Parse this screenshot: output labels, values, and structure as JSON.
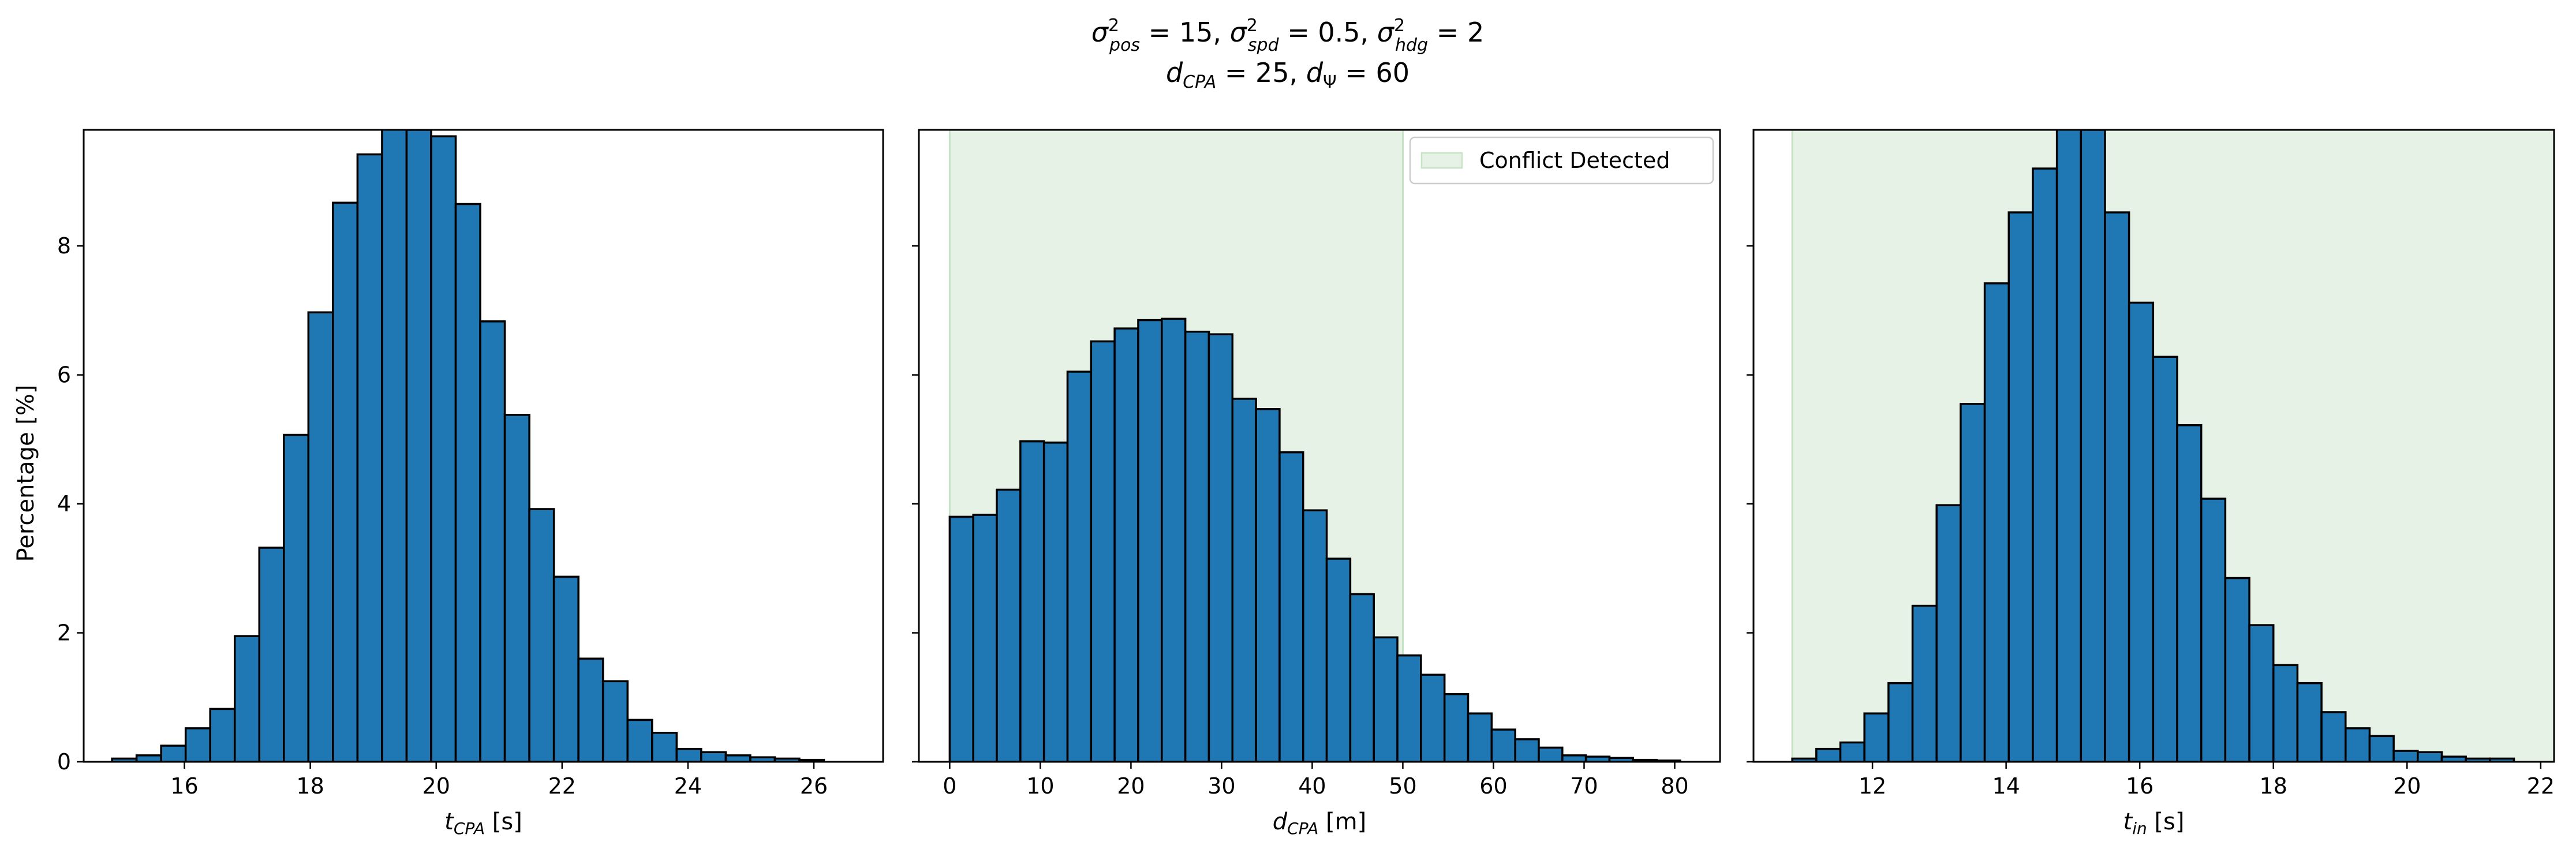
{
  "suptitle": {
    "line1": {
      "sigma": "σ",
      "sup": "2",
      "sub_pos": "pos",
      "val_pos": " = 15, ",
      "sub_spd": "spd",
      "val_spd": " = 0.5, ",
      "sub_hdg": "hdg",
      "val_hdg": " = 2"
    },
    "line2": {
      "d": "d",
      "sub_cpa": "CPA",
      "val_cpa": " = 25, ",
      "sub_psi": "Ψ",
      "val_psi": " = 60"
    }
  },
  "colors": {
    "bar_fill": "#1f77b4",
    "bar_edge": "#000000",
    "shade": "#e5f2e5",
    "shade_edge": "#c6e3c6"
  },
  "ylabel": "Percentage [%]",
  "legend_label": "Conflict Detected",
  "chart_data": [
    {
      "type": "bar",
      "name": "t_CPA",
      "xlabel": {
        "main": "t",
        "sub": "CPA",
        "unit": " [s]"
      },
      "xlim": [
        14.4,
        27.1
      ],
      "ylim": [
        0,
        9.8
      ],
      "xticks": [
        16,
        18,
        20,
        22,
        24,
        26
      ],
      "yticks": [
        0,
        2,
        4,
        6,
        8
      ],
      "bin_start": 14.85,
      "bin_width": 0.39,
      "values": [
        0.05,
        0.1,
        0.25,
        0.52,
        0.82,
        1.95,
        3.32,
        5.07,
        6.97,
        8.67,
        9.42,
        10.2,
        9.8,
        9.7,
        8.65,
        6.83,
        5.38,
        3.92,
        2.87,
        1.6,
        1.25,
        0.65,
        0.45,
        0.2,
        0.15,
        0.1,
        0.07,
        0.05,
        0.03
      ],
      "shade": null
    },
    {
      "type": "bar",
      "name": "d_CPA",
      "xlabel": {
        "main": "d",
        "sub": "CPA",
        "unit": " [m]"
      },
      "xlim": [
        -3.4,
        85
      ],
      "ylim": [
        0,
        9.8
      ],
      "xticks": [
        0,
        10,
        20,
        30,
        40,
        50,
        60,
        70,
        80
      ],
      "yticks": [
        0,
        2,
        4,
        6,
        8
      ],
      "bin_start": 0,
      "bin_width": 2.6,
      "values": [
        3.8,
        3.83,
        4.22,
        4.97,
        4.95,
        6.05,
        6.52,
        6.72,
        6.85,
        6.87,
        6.67,
        6.63,
        5.63,
        5.47,
        4.8,
        3.9,
        3.15,
        2.6,
        1.93,
        1.65,
        1.35,
        1.05,
        0.75,
        0.5,
        0.35,
        0.22,
        0.1,
        0.08,
        0.06,
        0.03,
        0.02
      ],
      "shade": [
        0,
        50
      ],
      "legend": "top-right"
    },
    {
      "type": "bar",
      "name": "t_in",
      "xlabel": {
        "main": "t",
        "sub": "in",
        "unit": " [s]"
      },
      "xlim": [
        10.22,
        22.2
      ],
      "ylim": [
        0,
        9.8
      ],
      "xticks": [
        12,
        14,
        16,
        18,
        20,
        22
      ],
      "yticks": [
        0,
        2,
        4,
        6,
        8
      ],
      "bin_start": 10.8,
      "bin_width": 0.36,
      "values": [
        0.05,
        0.2,
        0.3,
        0.75,
        1.22,
        2.42,
        3.98,
        5.55,
        7.42,
        8.52,
        9.2,
        10.2,
        9.8,
        8.52,
        7.12,
        6.28,
        5.22,
        4.08,
        2.85,
        2.12,
        1.5,
        1.22,
        0.77,
        0.52,
        0.4,
        0.17,
        0.15,
        0.08,
        0.05,
        0.05
      ],
      "shade": [
        10.8,
        50
      ],
      "legend": null
    }
  ]
}
